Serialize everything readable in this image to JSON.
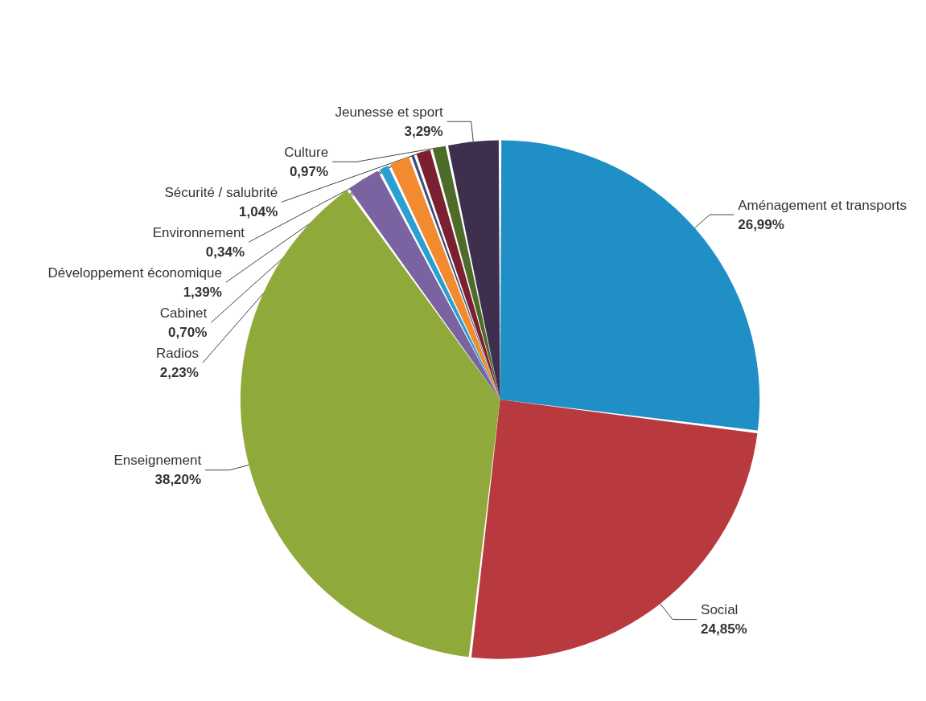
{
  "chart_data": {
    "type": "pie",
    "categories": [
      "Aménagement et transports",
      "Social",
      "Enseignement",
      "Radios",
      "Cabinet",
      "Développement économique",
      "Environnement",
      "Sécurité / salubrité",
      "Culture",
      "Jeunesse et sport"
    ],
    "values": [
      26.99,
      24.85,
      38.2,
      2.23,
      0.7,
      1.39,
      0.34,
      1.04,
      0.97,
      3.29
    ],
    "value_labels": [
      "26,99%",
      "24,85%",
      "38,20%",
      "2,23%",
      "0,70%",
      "1,39%",
      "0,34%",
      "1,04%",
      "0,97%",
      "3,29%"
    ],
    "colors": [
      "#1f8fc5",
      "#b83a3e",
      "#8faa3a",
      "#7b62a0",
      "#2a9fd0",
      "#f28a30",
      "#3a4f7a",
      "#7a2030",
      "#4f6b2a",
      "#3e2f4f"
    ],
    "legend": false
  }
}
